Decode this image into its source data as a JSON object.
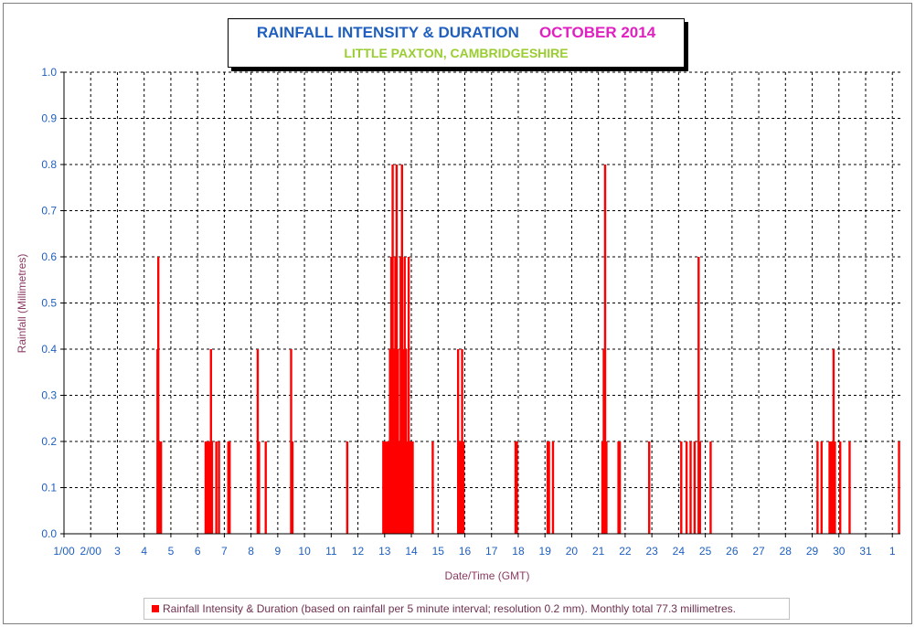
{
  "title": "RAINFALL INTENSITY & DURATION",
  "title_date": "OCTOBER 2014",
  "subtitle": "LITTLE PAXTON, CAMBRIDGESHIRE",
  "legend_text": "Rainfall Intensity & Duration (based on rainfall per 5 minute interval; resolution 0.2 mm). Monthly total 77.3 millimetres.",
  "colors": {
    "title": "#1f5fbf",
    "title_date": "#e020c0",
    "subtitle": "#9acd32",
    "bars": "#ff0000",
    "grid": "#000000",
    "axis_text": "#8b3a62",
    "tick_text": "#1f5fbf"
  },
  "chart_data": {
    "type": "bar",
    "xlabel": "Date/Time (GMT)",
    "ylabel": "Rainfall (Millimetres)",
    "ylim": [
      0,
      1.0
    ],
    "xlim": [
      1,
      32.3
    ],
    "grid": true,
    "legend_position": "bottom",
    "yticks": [
      "0.0",
      "0.1",
      "0.2",
      "0.3",
      "0.4",
      "0.5",
      "0.6",
      "0.7",
      "0.8",
      "0.9",
      "1.0"
    ],
    "xticks": [
      {
        "x": 1,
        "label": "1/00"
      },
      {
        "x": 2,
        "label": "2/00"
      },
      {
        "x": 3,
        "label": "3"
      },
      {
        "x": 4,
        "label": "4"
      },
      {
        "x": 5,
        "label": "5"
      },
      {
        "x": 6,
        "label": "6"
      },
      {
        "x": 7,
        "label": "7"
      },
      {
        "x": 8,
        "label": "8"
      },
      {
        "x": 9,
        "label": "9"
      },
      {
        "x": 10,
        "label": "10"
      },
      {
        "x": 11,
        "label": "11"
      },
      {
        "x": 12,
        "label": "12"
      },
      {
        "x": 13,
        "label": "13"
      },
      {
        "x": 14,
        "label": "14"
      },
      {
        "x": 15,
        "label": "15"
      },
      {
        "x": 16,
        "label": "16"
      },
      {
        "x": 17,
        "label": "17"
      },
      {
        "x": 18,
        "label": "18"
      },
      {
        "x": 19,
        "label": "19"
      },
      {
        "x": 20,
        "label": "20"
      },
      {
        "x": 21,
        "label": "21"
      },
      {
        "x": 22,
        "label": "22"
      },
      {
        "x": 23,
        "label": "23"
      },
      {
        "x": 24,
        "label": "24"
      },
      {
        "x": 25,
        "label": "25"
      },
      {
        "x": 26,
        "label": "26"
      },
      {
        "x": 27,
        "label": "27"
      },
      {
        "x": 28,
        "label": "28"
      },
      {
        "x": 29,
        "label": "29"
      },
      {
        "x": 30,
        "label": "30"
      },
      {
        "x": 31,
        "label": "31"
      },
      {
        "x": 32,
        "label": "1"
      }
    ],
    "series": [
      {
        "name": "Rainfall Intensity & Duration (based on rainfall per 5 minute interval; resolution 0.2 mm). Monthly total 77.3 millimetres.",
        "points": [
          {
            "x": 4.5,
            "y": 0.4
          },
          {
            "x": 4.53,
            "y": 0.6
          },
          {
            "x": 4.56,
            "y": 0.2
          },
          {
            "x": 4.6,
            "y": 0.2
          },
          {
            "x": 4.63,
            "y": 0.2
          },
          {
            "x": 6.3,
            "y": 0.2
          },
          {
            "x": 6.34,
            "y": 0.2
          },
          {
            "x": 6.38,
            "y": 0.2
          },
          {
            "x": 6.42,
            "y": 0.2
          },
          {
            "x": 6.46,
            "y": 0.2
          },
          {
            "x": 6.5,
            "y": 0.4
          },
          {
            "x": 6.54,
            "y": 0.2
          },
          {
            "x": 6.7,
            "y": 0.2
          },
          {
            "x": 6.8,
            "y": 0.2
          },
          {
            "x": 7.15,
            "y": 0.2
          },
          {
            "x": 7.2,
            "y": 0.2
          },
          {
            "x": 8.25,
            "y": 0.4
          },
          {
            "x": 8.3,
            "y": 0.2
          },
          {
            "x": 8.55,
            "y": 0.2
          },
          {
            "x": 9.5,
            "y": 0.4
          },
          {
            "x": 9.55,
            "y": 0.2
          },
          {
            "x": 11.6,
            "y": 0.2
          },
          {
            "x": 12.95,
            "y": 0.2
          },
          {
            "x": 13.0,
            "y": 0.2
          },
          {
            "x": 13.05,
            "y": 0.2
          },
          {
            "x": 13.1,
            "y": 0.2
          },
          {
            "x": 13.15,
            "y": 0.2
          },
          {
            "x": 13.2,
            "y": 0.4
          },
          {
            "x": 13.25,
            "y": 0.6
          },
          {
            "x": 13.3,
            "y": 0.8
          },
          {
            "x": 13.35,
            "y": 0.4
          },
          {
            "x": 13.4,
            "y": 0.6
          },
          {
            "x": 13.45,
            "y": 0.8
          },
          {
            "x": 13.5,
            "y": 0.4
          },
          {
            "x": 13.55,
            "y": 0.2
          },
          {
            "x": 13.6,
            "y": 0.6
          },
          {
            "x": 13.65,
            "y": 0.8
          },
          {
            "x": 13.7,
            "y": 0.4
          },
          {
            "x": 13.75,
            "y": 0.6
          },
          {
            "x": 13.8,
            "y": 0.4
          },
          {
            "x": 13.85,
            "y": 0.2
          },
          {
            "x": 13.9,
            "y": 0.6
          },
          {
            "x": 13.95,
            "y": 0.2
          },
          {
            "x": 14.0,
            "y": 0.2
          },
          {
            "x": 14.05,
            "y": 0.2
          },
          {
            "x": 14.8,
            "y": 0.2
          },
          {
            "x": 15.75,
            "y": 0.4
          },
          {
            "x": 15.8,
            "y": 0.2
          },
          {
            "x": 15.85,
            "y": 0.2
          },
          {
            "x": 15.9,
            "y": 0.4
          },
          {
            "x": 15.95,
            "y": 0.2
          },
          {
            "x": 17.9,
            "y": 0.2
          },
          {
            "x": 17.95,
            "y": 0.2
          },
          {
            "x": 19.1,
            "y": 0.2
          },
          {
            "x": 19.15,
            "y": 0.2
          },
          {
            "x": 19.3,
            "y": 0.2
          },
          {
            "x": 21.15,
            "y": 0.2
          },
          {
            "x": 21.2,
            "y": 0.4
          },
          {
            "x": 21.25,
            "y": 0.8
          },
          {
            "x": 21.3,
            "y": 0.2
          },
          {
            "x": 21.75,
            "y": 0.2
          },
          {
            "x": 21.8,
            "y": 0.2
          },
          {
            "x": 22.9,
            "y": 0.2
          },
          {
            "x": 24.1,
            "y": 0.2
          },
          {
            "x": 24.3,
            "y": 0.2
          },
          {
            "x": 24.45,
            "y": 0.2
          },
          {
            "x": 24.6,
            "y": 0.2
          },
          {
            "x": 24.75,
            "y": 0.6
          },
          {
            "x": 24.8,
            "y": 0.2
          },
          {
            "x": 25.2,
            "y": 0.2
          },
          {
            "x": 29.2,
            "y": 0.2
          },
          {
            "x": 29.35,
            "y": 0.2
          },
          {
            "x": 29.65,
            "y": 0.2
          },
          {
            "x": 29.7,
            "y": 0.2
          },
          {
            "x": 29.75,
            "y": 0.2
          },
          {
            "x": 29.8,
            "y": 0.4
          },
          {
            "x": 29.85,
            "y": 0.2
          },
          {
            "x": 30.05,
            "y": 0.2
          },
          {
            "x": 30.4,
            "y": 0.2
          },
          {
            "x": 32.25,
            "y": 0.2
          }
        ]
      }
    ]
  }
}
